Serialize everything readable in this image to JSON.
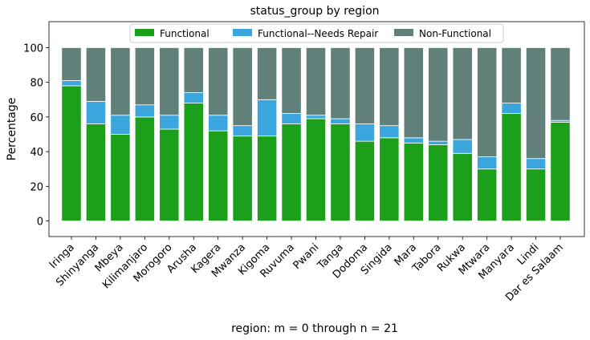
{
  "chart_data": {
    "type": "bar",
    "stacked": true,
    "title": "status_group by region",
    "xlabel": "region: m = 0 through n = 21",
    "ylabel": "Percentage",
    "ylim": [
      -9,
      115
    ],
    "yticks": [
      0,
      20,
      40,
      60,
      80,
      100
    ],
    "grid": false,
    "legend_position": "top-center",
    "categories": [
      "Iringa",
      "Shinyanga",
      "Mbeya",
      "Kilimanjaro",
      "Morogoro",
      "Arusha",
      "Kagera",
      "Mwanza",
      "Kigoma",
      "Ruvuma",
      "Pwani",
      "Tanga",
      "Dodoma",
      "Singida",
      "Mara",
      "Tabora",
      "Rukwa",
      "Mtwara",
      "Manyara",
      "Lindi",
      "Dar es Salaam"
    ],
    "series": [
      {
        "name": "Functional",
        "color": "#1ca01c",
        "values": [
          78,
          56,
          50,
          60,
          53,
          68,
          52,
          49,
          49,
          56,
          59,
          56,
          46,
          48,
          45,
          44,
          39,
          30,
          62,
          30,
          57
        ]
      },
      {
        "name": "Functional--Needs Repair",
        "color": "#3aa6dd",
        "values": [
          3,
          13,
          11,
          7,
          8,
          6,
          9,
          6,
          21,
          6,
          2,
          3,
          10,
          7,
          3,
          2,
          8,
          7,
          6,
          6,
          1
        ]
      },
      {
        "name": "Non-Functional",
        "color": "#62807a",
        "values": [
          19,
          31,
          39,
          33,
          39,
          26,
          39,
          45,
          30,
          38,
          39,
          41,
          44,
          45,
          52,
          54,
          53,
          63,
          32,
          64,
          42
        ]
      }
    ]
  }
}
